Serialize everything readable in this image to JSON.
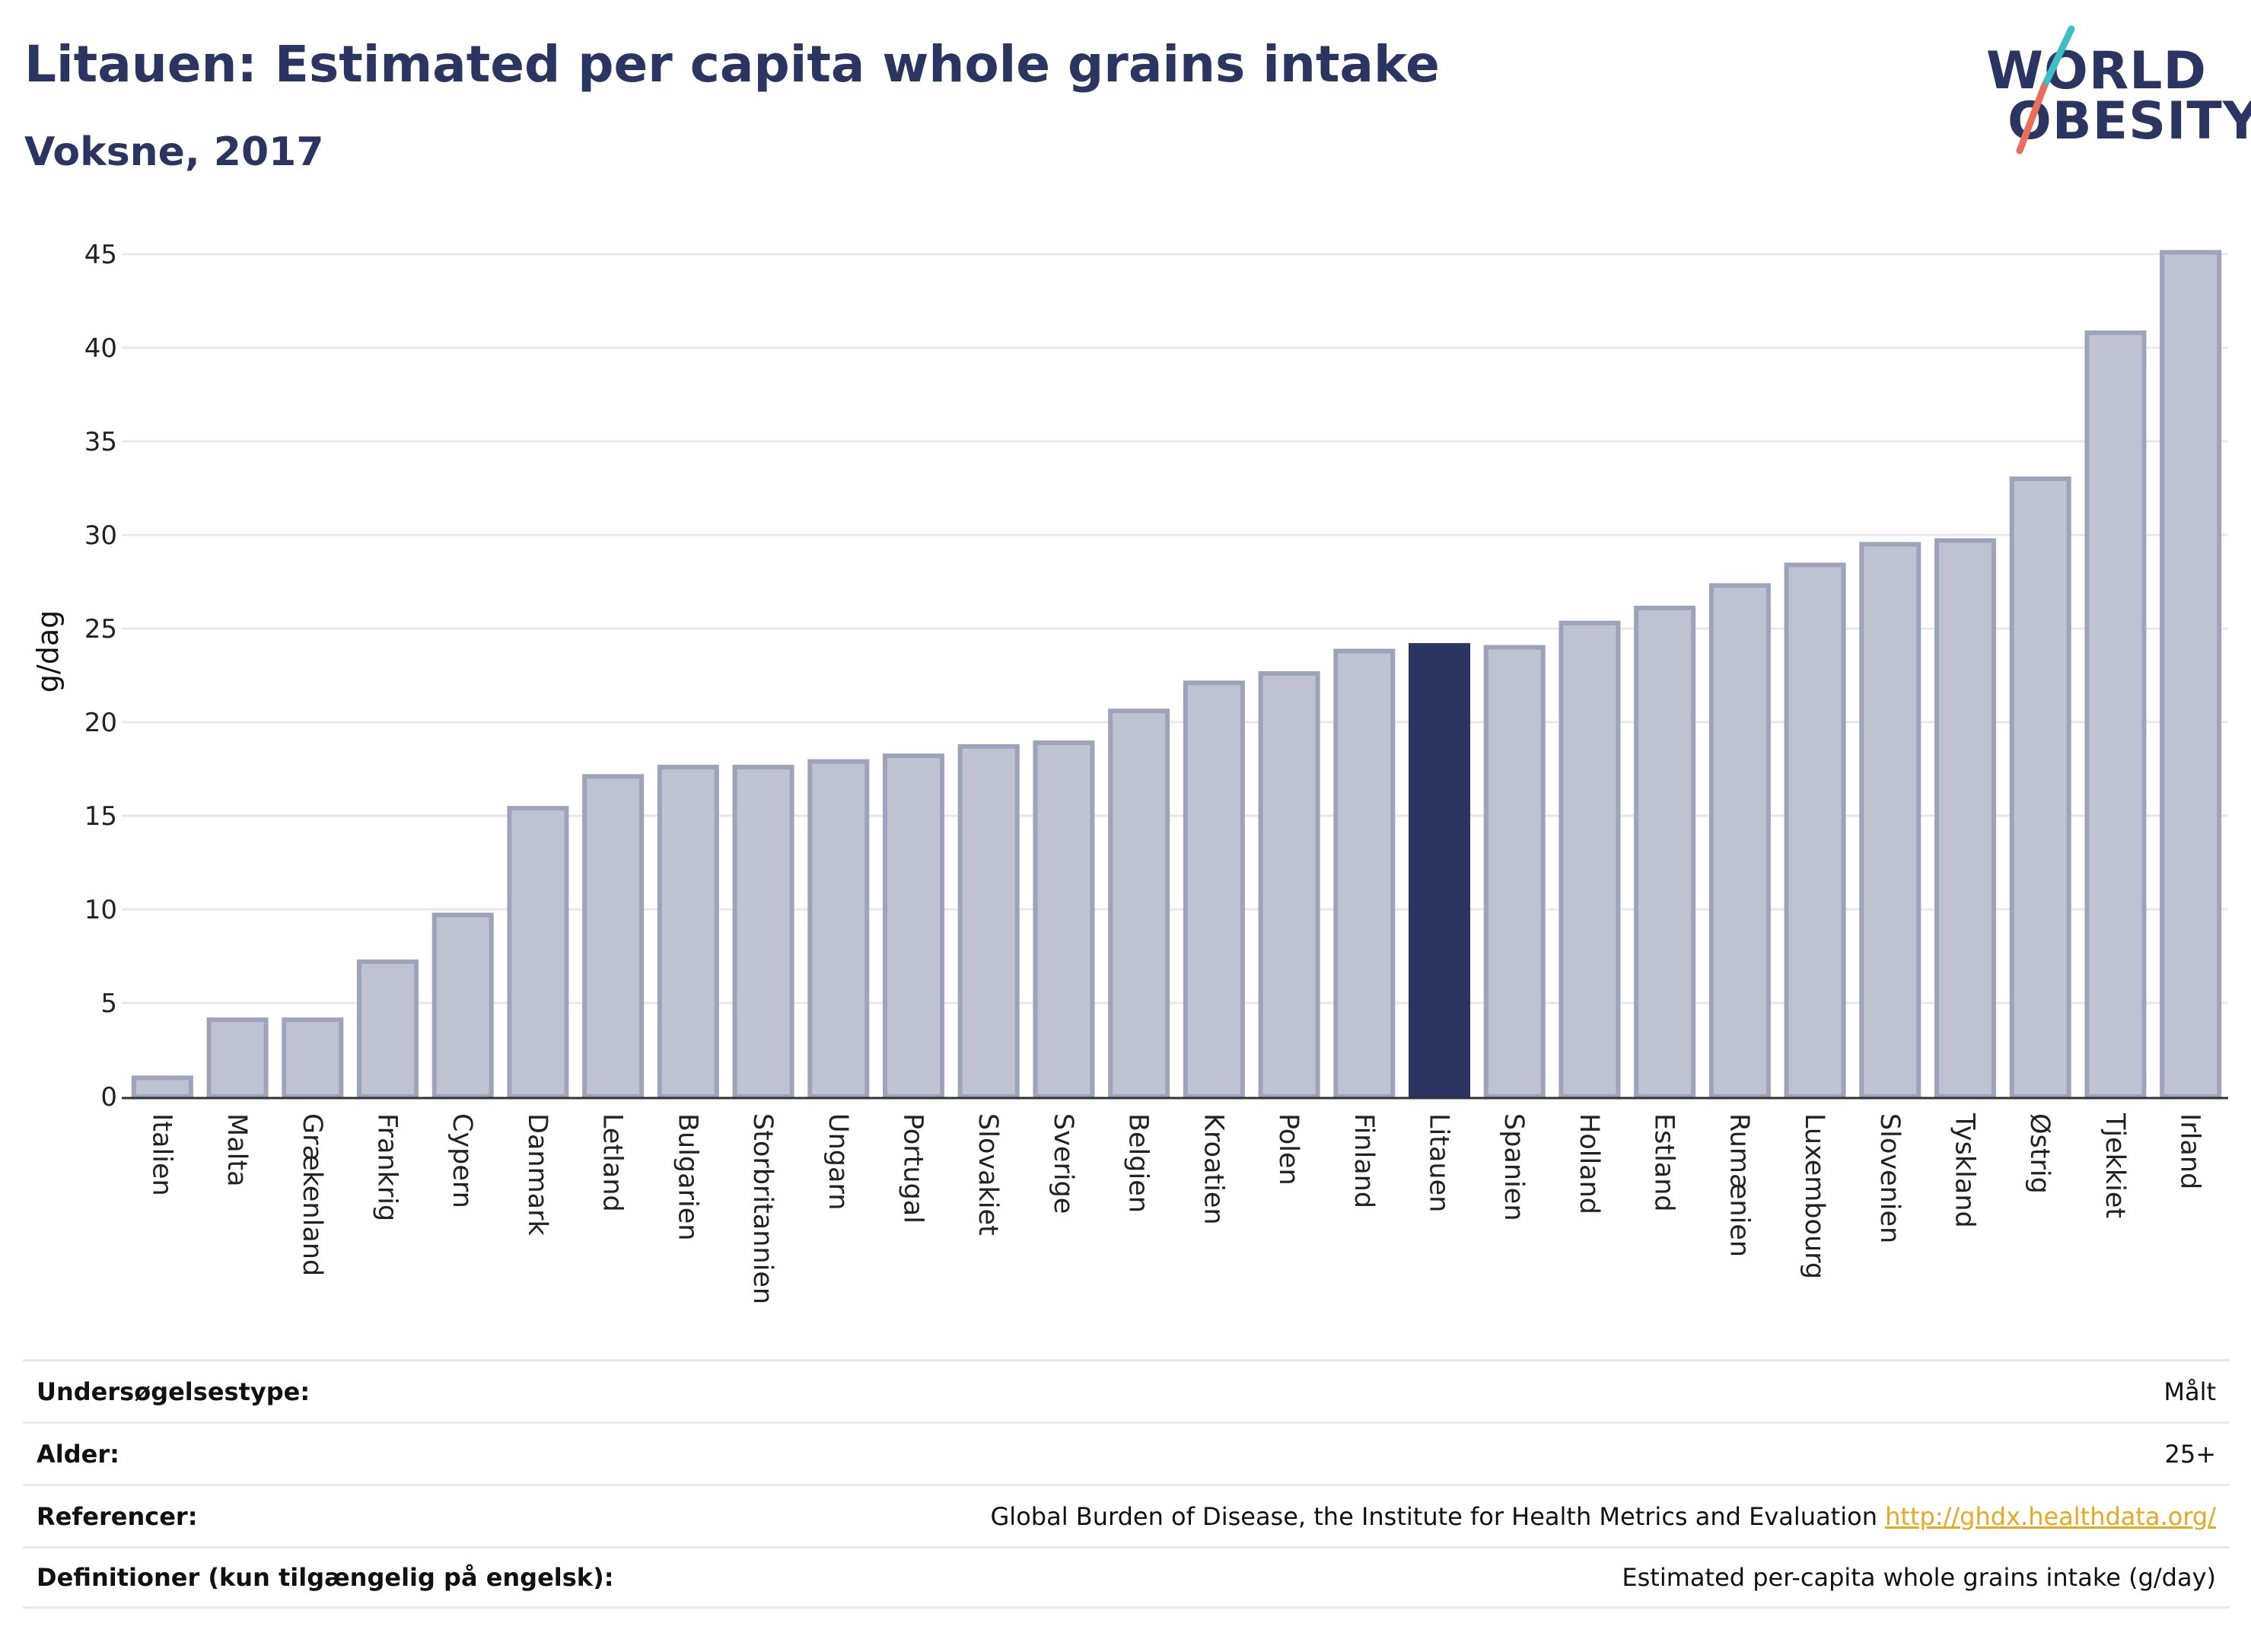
{
  "header": {
    "title": "Litauen: Estimated per capita whole grains intake",
    "subtitle": "Voksne, 2017"
  },
  "logo": {
    "line1": "WORLD",
    "line2": "OBESITY",
    "colors": {
      "text": "#2b3561",
      "slash_top": "#3dbdc4",
      "slash_bottom": "#e8705a"
    }
  },
  "colors": {
    "bar_fill": "#bfc3d1",
    "bar_stroke": "#9da3bb",
    "highlight": "#2b3561",
    "grid": "#e6e8ee",
    "axis": "#333333"
  },
  "chart_data": {
    "type": "bar",
    "ylabel": "g/dag",
    "xlabel": "",
    "ylim": [
      0,
      45
    ],
    "yticks": [
      0,
      5,
      10,
      15,
      20,
      25,
      30,
      35,
      40,
      45
    ],
    "grid": true,
    "highlight": "Litauen",
    "categories": [
      "Italien",
      "Malta",
      "Grækenland",
      "Frankrig",
      "Cypern",
      "Danmark",
      "Letland",
      "Bulgarien",
      "Storbritannien",
      "Ungarn",
      "Portugal",
      "Slovakiet",
      "Sverige",
      "Belgien",
      "Kroatien",
      "Polen",
      "Finland",
      "Litauen",
      "Spanien",
      "Holland",
      "Estland",
      "Rumænien",
      "Luxembourg",
      "Slovenien",
      "Tyskland",
      "Østrig",
      "Tjekkiet",
      "Irland"
    ],
    "values": [
      1.0,
      4.1,
      4.1,
      7.2,
      9.7,
      15.4,
      17.1,
      17.6,
      17.6,
      17.9,
      18.2,
      18.7,
      18.9,
      20.6,
      22.1,
      22.6,
      23.8,
      24.1,
      24.0,
      25.3,
      26.1,
      27.3,
      28.4,
      29.5,
      29.7,
      33.0,
      40.8,
      45.1
    ]
  },
  "meta": [
    {
      "label": "Undersøgelsestype:",
      "value": "Målt"
    },
    {
      "label": "Alder:",
      "value": "25+"
    },
    {
      "label": "Referencer:",
      "value": "Global Burden of Disease, the Institute for Health Metrics and Evaluation",
      "link": "http://ghdx.healthdata.org/"
    },
    {
      "label": "Definitioner (kun tilgængelig på engelsk):",
      "value": "Estimated per-capita whole grains intake (g/day)"
    }
  ]
}
